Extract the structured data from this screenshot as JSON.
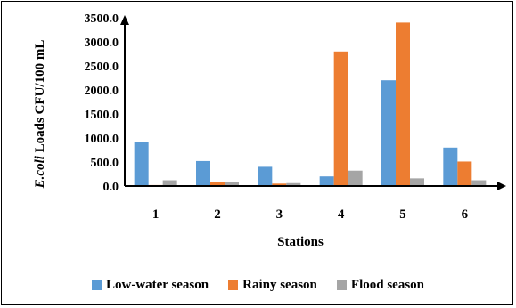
{
  "chart_data": {
    "type": "bar",
    "categories": [
      "1",
      "2",
      "3",
      "4",
      "5",
      "6"
    ],
    "series": [
      {
        "name": "Low-water season",
        "color": "#5b9bd5",
        "values": [
          920,
          520,
          400,
          200,
          2200,
          800
        ]
      },
      {
        "name": "Rainy season",
        "color": "#ed7d31",
        "values": [
          20,
          90,
          50,
          2800,
          3400,
          510
        ]
      },
      {
        "name": "Flood season",
        "color": "#a5a5a5",
        "values": [
          120,
          90,
          60,
          320,
          160,
          120
        ]
      }
    ],
    "xlabel": "Stations",
    "ylabel_italic": "E.coli",
    "ylabel_rest": " Loads CFU/100 mL",
    "ylim": [
      0,
      3500
    ],
    "yticks": [
      "0.0",
      "500.0",
      "1000.0",
      "1500.0",
      "2000.0",
      "2500.0",
      "3000.0",
      "3500.0"
    ],
    "legend_position": "bottom",
    "grid": false
  }
}
